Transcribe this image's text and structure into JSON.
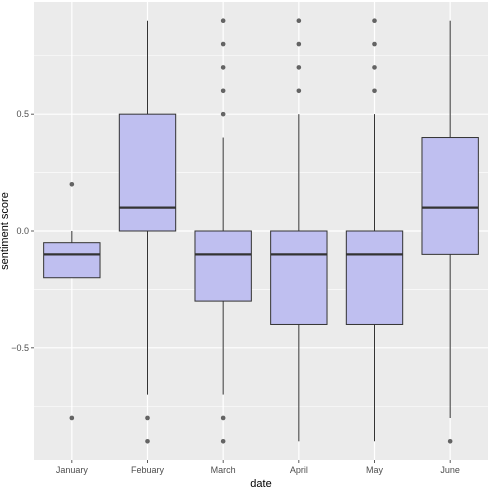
{
  "chart_data": {
    "type": "boxplot",
    "xlabel": "date",
    "ylabel": "sentiment score",
    "ylim": [
      -0.98,
      0.98
    ],
    "yticks": [
      -0.5,
      0.0,
      0.5
    ],
    "ytick_labels": [
      "−0.5",
      "0.0",
      "0.5"
    ],
    "grid": true,
    "panel_background": "#ebebeb",
    "grid_color": "#ffffff",
    "box_fill": "#bfbff0",
    "categories": [
      "January",
      "Febuary",
      "March",
      "April",
      "May",
      "June"
    ],
    "boxes": [
      {
        "category": "January",
        "whisker_low": -0.2,
        "q1": -0.2,
        "median": -0.1,
        "q3": -0.05,
        "whisker_high": 0.0,
        "outliers": [
          0.2,
          -0.8
        ]
      },
      {
        "category": "Febuary",
        "whisker_low": -0.7,
        "q1": 0.0,
        "median": 0.1,
        "q3": 0.5,
        "whisker_high": 0.9,
        "outliers": [
          -0.8,
          -0.9
        ]
      },
      {
        "category": "March",
        "whisker_low": -0.7,
        "q1": -0.3,
        "median": -0.1,
        "q3": 0.0,
        "whisker_high": 0.4,
        "outliers": [
          0.5,
          0.6,
          0.7,
          0.8,
          0.9,
          -0.8,
          -0.9
        ]
      },
      {
        "category": "April",
        "whisker_low": -0.9,
        "q1": -0.4,
        "median": -0.1,
        "q3": 0.0,
        "whisker_high": 0.5,
        "outliers": [
          0.6,
          0.7,
          0.8,
          0.9
        ]
      },
      {
        "category": "May",
        "whisker_low": -0.9,
        "q1": -0.4,
        "median": -0.1,
        "q3": 0.0,
        "whisker_high": 0.5,
        "outliers": [
          0.6,
          0.7,
          0.8,
          0.9
        ]
      },
      {
        "category": "June",
        "whisker_low": -0.8,
        "q1": -0.1,
        "median": 0.1,
        "q3": 0.4,
        "whisker_high": 0.9,
        "outliers": [
          -0.9
        ]
      }
    ]
  }
}
